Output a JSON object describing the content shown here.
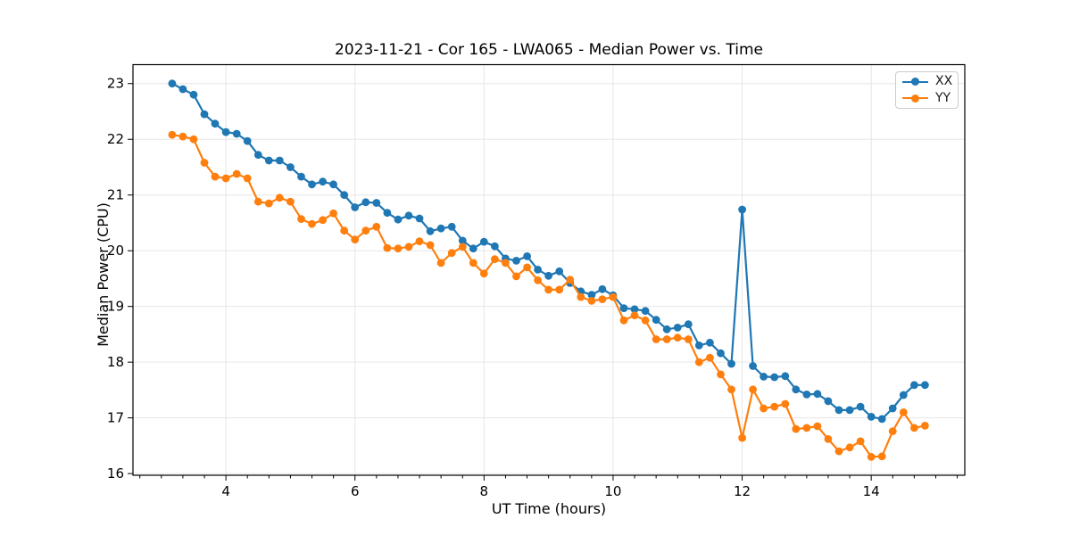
{
  "chart_data": {
    "type": "line",
    "title": "2023-11-21 - Cor 165 - LWA065 - Median Power vs. Time",
    "xlabel": "UT Time (hours)",
    "ylabel": "Median Power (CPU)",
    "xlim": [
      2.56,
      15.45
    ],
    "ylim": [
      15.97,
      23.34
    ],
    "x_ticks": [
      4,
      6,
      8,
      10,
      12,
      14
    ],
    "y_ticks": [
      16,
      17,
      18,
      19,
      20,
      21,
      22,
      23
    ],
    "minor_tick_step_x": 0.3333,
    "grid": true,
    "grid_color": "#e6e6e6",
    "legend_position": "upper right",
    "marker": "circle",
    "x": [
      3.167,
      3.333,
      3.5,
      3.667,
      3.833,
      4.0,
      4.167,
      4.333,
      4.5,
      4.667,
      4.833,
      5.0,
      5.167,
      5.333,
      5.5,
      5.667,
      5.833,
      6.0,
      6.167,
      6.333,
      6.5,
      6.667,
      6.833,
      7.0,
      7.167,
      7.333,
      7.5,
      7.667,
      7.833,
      8.0,
      8.167,
      8.333,
      8.5,
      8.667,
      8.833,
      9.0,
      9.167,
      9.333,
      9.5,
      9.667,
      9.833,
      10.0,
      10.167,
      10.333,
      10.5,
      10.667,
      10.833,
      11.0,
      11.167,
      11.333,
      11.5,
      11.667,
      11.833,
      12.0,
      12.167,
      12.333,
      12.5,
      12.667,
      12.833,
      13.0,
      13.167,
      13.333,
      13.5,
      13.667,
      13.833,
      14.0,
      14.167,
      14.333,
      14.5,
      14.667,
      14.833
    ],
    "series": [
      {
        "name": "XX",
        "color": "#1f77b4",
        "values": [
          23.0,
          22.9,
          22.8,
          22.45,
          22.28,
          22.13,
          22.1,
          21.97,
          21.72,
          21.62,
          21.62,
          21.5,
          21.33,
          21.19,
          21.24,
          21.19,
          21.0,
          20.78,
          20.87,
          20.86,
          20.68,
          20.56,
          20.63,
          20.58,
          20.35,
          20.4,
          20.43,
          20.18,
          20.04,
          20.16,
          20.08,
          19.86,
          19.82,
          19.9,
          19.66,
          19.55,
          19.63,
          19.42,
          19.27,
          19.21,
          19.31,
          19.2,
          18.97,
          18.95,
          18.92,
          18.76,
          18.59,
          18.62,
          18.68,
          18.3,
          18.35,
          18.16,
          17.97,
          20.74,
          17.93,
          17.74,
          17.73,
          17.75,
          17.51,
          17.42,
          17.43,
          17.3,
          17.14,
          17.14,
          17.2,
          17.02,
          16.98,
          17.17,
          17.41,
          17.59,
          17.59
        ]
      },
      {
        "name": "YY",
        "color": "#ff7f0e",
        "values": [
          22.08,
          22.05,
          22.0,
          21.58,
          21.33,
          21.3,
          21.38,
          21.3,
          20.88,
          20.85,
          20.95,
          20.88,
          20.57,
          20.48,
          20.55,
          20.67,
          20.36,
          20.2,
          20.36,
          20.43,
          20.05,
          20.04,
          20.07,
          20.17,
          20.1,
          19.78,
          19.96,
          20.07,
          19.78,
          19.59,
          19.85,
          19.78,
          19.54,
          19.7,
          19.47,
          19.3,
          19.3,
          19.48,
          19.17,
          19.1,
          19.13,
          19.17,
          18.75,
          18.84,
          18.75,
          18.41,
          18.41,
          18.44,
          18.41,
          18.0,
          18.08,
          17.78,
          17.51,
          16.64,
          17.51,
          17.17,
          17.2,
          17.25,
          16.8,
          16.82,
          16.85,
          16.62,
          16.4,
          16.47,
          16.58,
          16.3,
          16.31,
          16.76,
          17.1,
          16.82,
          16.86
        ]
      }
    ]
  }
}
